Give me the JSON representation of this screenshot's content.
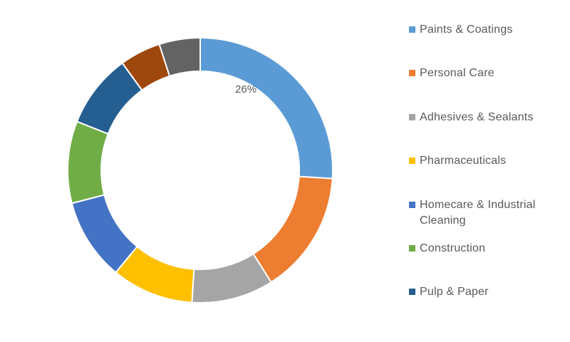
{
  "chart_data": {
    "type": "pie",
    "variant": "donut",
    "title": "",
    "legend_position": "right",
    "series": [
      {
        "categories": [
          "Paints & Coatings",
          "Personal Care",
          "Adhesives & Sealants",
          "Pharmaceuticals",
          "Homecare & Industrial Cleaning",
          "Construction",
          "Pulp & Paper",
          "",
          ""
        ],
        "values": [
          26,
          15,
          10,
          10,
          10,
          10,
          9,
          5,
          5
        ],
        "colors": [
          "#5b9bd5",
          "#ed7d31",
          "#a5a5a5",
          "#ffc000",
          "#4472c4",
          "#70ad47",
          "#255e91",
          "#9e480e",
          "#636363"
        ],
        "data_labels": [
          "26%",
          "",
          "",
          "",
          "",
          "",
          "",
          "",
          ""
        ]
      }
    ]
  },
  "legend": {
    "items": [
      {
        "label": "Paints & Coatings",
        "color": "#5b9bd5"
      },
      {
        "label": "Personal Care",
        "color": "#ed7d31"
      },
      {
        "label": "Adhesives & Sealants",
        "color": "#a5a5a5"
      },
      {
        "label": "Pharmaceuticals",
        "color": "#ffc000"
      },
      {
        "label": "Homecare & Industrial Cleaning",
        "color": "#4472c4"
      },
      {
        "label": "Construction",
        "color": "#70ad47"
      },
      {
        "label": "Pulp & Paper",
        "color": "#255e91"
      }
    ]
  }
}
